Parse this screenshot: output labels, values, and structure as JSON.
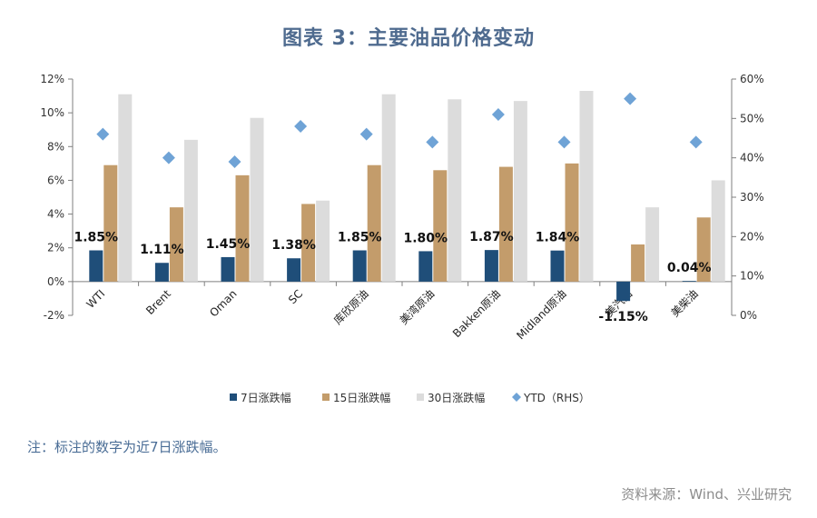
{
  "title": "图表 3：主要油品价格变动",
  "note": "注：标注的数字为近7日涨跌幅。",
  "source": "资料来源：Wind、兴业研究",
  "chart_data": {
    "type": "bar",
    "categories": [
      "WTI",
      "Brent",
      "Oman",
      "SC",
      "库欣原油",
      "美湾原油",
      "Bakken原油",
      "Midland原油",
      "美汽油",
      "美柴油"
    ],
    "series": [
      {
        "name": "7日涨跌幅",
        "axis": "left",
        "color": "#1f4e79",
        "values": [
          1.85,
          1.11,
          1.45,
          1.38,
          1.85,
          1.8,
          1.87,
          1.84,
          -1.15,
          0.04
        ]
      },
      {
        "name": "15日涨跌幅",
        "axis": "left",
        "color": "#c39c6b",
        "values": [
          6.9,
          4.4,
          6.3,
          4.6,
          6.9,
          6.6,
          6.8,
          7.0,
          2.2,
          3.8
        ]
      },
      {
        "name": "30日涨跌幅",
        "axis": "left",
        "color": "#dcdcdc",
        "values": [
          11.1,
          8.4,
          9.7,
          4.8,
          11.1,
          10.8,
          10.7,
          11.3,
          4.4,
          6.0
        ]
      },
      {
        "name": "YTD（RHS）",
        "axis": "right",
        "type": "scatter",
        "color": "#6fa3d6",
        "values": [
          46,
          40,
          39,
          48,
          46,
          44,
          51,
          44,
          55,
          44
        ]
      }
    ],
    "data_labels": [
      "1.85%",
      "1.11%",
      "1.45%",
      "1.38%",
      "1.85%",
      "1.80%",
      "1.87%",
      "1.84%",
      "-1.15%",
      "0.04%"
    ],
    "y_left": {
      "min": -2,
      "max": 12,
      "step": 2,
      "tick_labels": [
        "-2%",
        "0%",
        "2%",
        "4%",
        "6%",
        "8%",
        "10%",
        "12%"
      ]
    },
    "y_right": {
      "min": 0,
      "max": 60,
      "step": 10,
      "tick_labels": [
        "0%",
        "10%",
        "20%",
        "30%",
        "40%",
        "50%",
        "60%"
      ]
    },
    "legend_position": "bottom",
    "grid": false
  }
}
